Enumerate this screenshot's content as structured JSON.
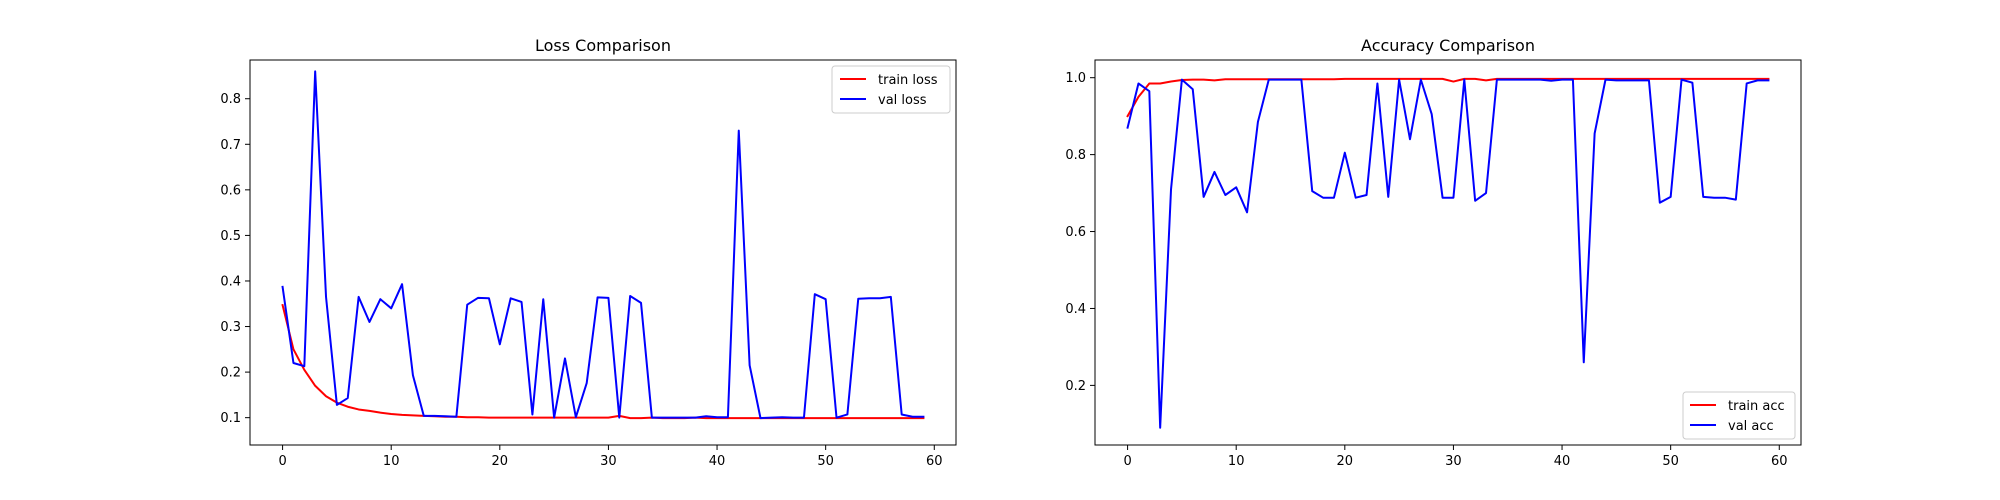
{
  "figure": {
    "background": "#ffffff"
  },
  "chart_data": [
    {
      "type": "line",
      "title": "Loss Comparison",
      "xlabel": "",
      "ylabel": "",
      "xlim": [
        -3,
        62
      ],
      "ylim": [
        0.04,
        0.885
      ],
      "xticks": [
        0,
        10,
        20,
        30,
        40,
        50,
        60
      ],
      "yticks": [
        0.1,
        0.2,
        0.3,
        0.4,
        0.5,
        0.6,
        0.7,
        0.8
      ],
      "grid": false,
      "legend_position": "upper right",
      "series": [
        {
          "name": "train loss",
          "color": "#ff0000",
          "x": [
            0,
            1,
            2,
            3,
            4,
            5,
            6,
            7,
            8,
            9,
            10,
            11,
            12,
            13,
            14,
            15,
            16,
            17,
            18,
            19,
            20,
            21,
            22,
            23,
            24,
            25,
            26,
            27,
            28,
            29,
            30,
            31,
            32,
            33,
            34,
            35,
            36,
            37,
            38,
            39,
            40,
            41,
            42,
            43,
            44,
            45,
            46,
            47,
            48,
            49,
            50,
            51,
            52,
            53,
            54,
            55,
            56,
            57,
            58,
            59
          ],
          "values": [
            0.347,
            0.25,
            0.205,
            0.17,
            0.147,
            0.133,
            0.124,
            0.118,
            0.115,
            0.111,
            0.108,
            0.106,
            0.105,
            0.104,
            0.103,
            0.102,
            0.102,
            0.101,
            0.101,
            0.1,
            0.1,
            0.1,
            0.1,
            0.1,
            0.1,
            0.1,
            0.1,
            0.1,
            0.1,
            0.1,
            0.1,
            0.104,
            0.099,
            0.099,
            0.1,
            0.099,
            0.099,
            0.099,
            0.1,
            0.099,
            0.099,
            0.099,
            0.099,
            0.099,
            0.099,
            0.099,
            0.099,
            0.099,
            0.099,
            0.099,
            0.099,
            0.099,
            0.099,
            0.099,
            0.099,
            0.099,
            0.099,
            0.099,
            0.099,
            0.099
          ]
        },
        {
          "name": "val loss",
          "color": "#0000ff",
          "x": [
            0,
            1,
            2,
            3,
            4,
            5,
            6,
            7,
            8,
            9,
            10,
            11,
            12,
            13,
            14,
            15,
            16,
            17,
            18,
            19,
            20,
            21,
            22,
            23,
            24,
            25,
            26,
            27,
            28,
            29,
            30,
            31,
            32,
            33,
            34,
            35,
            36,
            37,
            38,
            39,
            40,
            41,
            42,
            43,
            44,
            45,
            46,
            47,
            48,
            49,
            50,
            51,
            52,
            53,
            54,
            55,
            56,
            57,
            58,
            59
          ],
          "values": [
            0.387,
            0.22,
            0.213,
            0.86,
            0.365,
            0.128,
            0.143,
            0.365,
            0.31,
            0.36,
            0.34,
            0.393,
            0.193,
            0.104,
            0.104,
            0.103,
            0.102,
            0.348,
            0.363,
            0.362,
            0.261,
            0.362,
            0.354,
            0.107,
            0.36,
            0.1,
            0.23,
            0.101,
            0.176,
            0.364,
            0.363,
            0.1,
            0.367,
            0.352,
            0.1,
            0.1,
            0.1,
            0.1,
            0.1,
            0.103,
            0.101,
            0.101,
            0.73,
            0.215,
            0.099,
            0.1,
            0.101,
            0.1,
            0.1,
            0.371,
            0.36,
            0.1,
            0.107,
            0.361,
            0.362,
            0.362,
            0.365,
            0.107,
            0.102,
            0.102
          ]
        }
      ]
    },
    {
      "type": "line",
      "title": "Accuracy Comparison",
      "xlabel": "",
      "ylabel": "",
      "xlim": [
        -3,
        62
      ],
      "ylim": [
        0.045,
        1.046
      ],
      "xticks": [
        0,
        10,
        20,
        30,
        40,
        50,
        60
      ],
      "yticks": [
        0.2,
        0.4,
        0.6,
        0.8,
        1.0
      ],
      "grid": false,
      "legend_position": "lower right",
      "series": [
        {
          "name": "train acc",
          "color": "#ff0000",
          "x": [
            0,
            1,
            2,
            3,
            4,
            5,
            6,
            7,
            8,
            9,
            10,
            11,
            12,
            13,
            14,
            15,
            16,
            17,
            18,
            19,
            20,
            21,
            22,
            23,
            24,
            25,
            26,
            27,
            28,
            29,
            30,
            31,
            32,
            33,
            34,
            35,
            36,
            37,
            38,
            39,
            40,
            41,
            42,
            43,
            44,
            45,
            46,
            47,
            48,
            49,
            50,
            51,
            52,
            53,
            54,
            55,
            56,
            57,
            58,
            59
          ],
          "values": [
            0.9,
            0.95,
            0.985,
            0.985,
            0.99,
            0.994,
            0.995,
            0.995,
            0.993,
            0.996,
            0.996,
            0.996,
            0.996,
            0.996,
            0.996,
            0.996,
            0.996,
            0.996,
            0.996,
            0.996,
            0.997,
            0.997,
            0.997,
            0.997,
            0.997,
            0.997,
            0.997,
            0.997,
            0.997,
            0.997,
            0.99,
            0.997,
            0.997,
            0.993,
            0.997,
            0.997,
            0.997,
            0.997,
            0.997,
            0.997,
            0.997,
            0.997,
            0.997,
            0.997,
            0.997,
            0.997,
            0.997,
            0.997,
            0.997,
            0.997,
            0.997,
            0.997,
            0.997,
            0.997,
            0.997,
            0.997,
            0.997,
            0.997,
            0.997,
            0.997
          ]
        },
        {
          "name": "val acc",
          "color": "#0000ff",
          "x": [
            0,
            1,
            2,
            3,
            4,
            5,
            6,
            7,
            8,
            9,
            10,
            11,
            12,
            13,
            14,
            15,
            16,
            17,
            18,
            19,
            20,
            21,
            22,
            23,
            24,
            25,
            26,
            27,
            28,
            29,
            30,
            31,
            32,
            33,
            34,
            35,
            36,
            37,
            38,
            39,
            40,
            41,
            42,
            43,
            44,
            45,
            46,
            47,
            48,
            49,
            50,
            51,
            52,
            53,
            54,
            55,
            56,
            57,
            58,
            59
          ],
          "values": [
            0.87,
            0.985,
            0.965,
            0.09,
            0.71,
            0.995,
            0.97,
            0.69,
            0.755,
            0.695,
            0.715,
            0.65,
            0.885,
            0.995,
            0.995,
            0.995,
            0.995,
            0.705,
            0.688,
            0.688,
            0.805,
            0.688,
            0.695,
            0.985,
            0.69,
            0.995,
            0.84,
            0.995,
            0.905,
            0.688,
            0.688,
            0.995,
            0.68,
            0.7,
            0.995,
            0.995,
            0.995,
            0.995,
            0.995,
            0.992,
            0.995,
            0.995,
            0.26,
            0.855,
            0.995,
            0.993,
            0.993,
            0.993,
            0.993,
            0.675,
            0.69,
            0.995,
            0.987,
            0.69,
            0.688,
            0.688,
            0.683,
            0.985,
            0.993,
            0.993
          ]
        }
      ]
    }
  ]
}
